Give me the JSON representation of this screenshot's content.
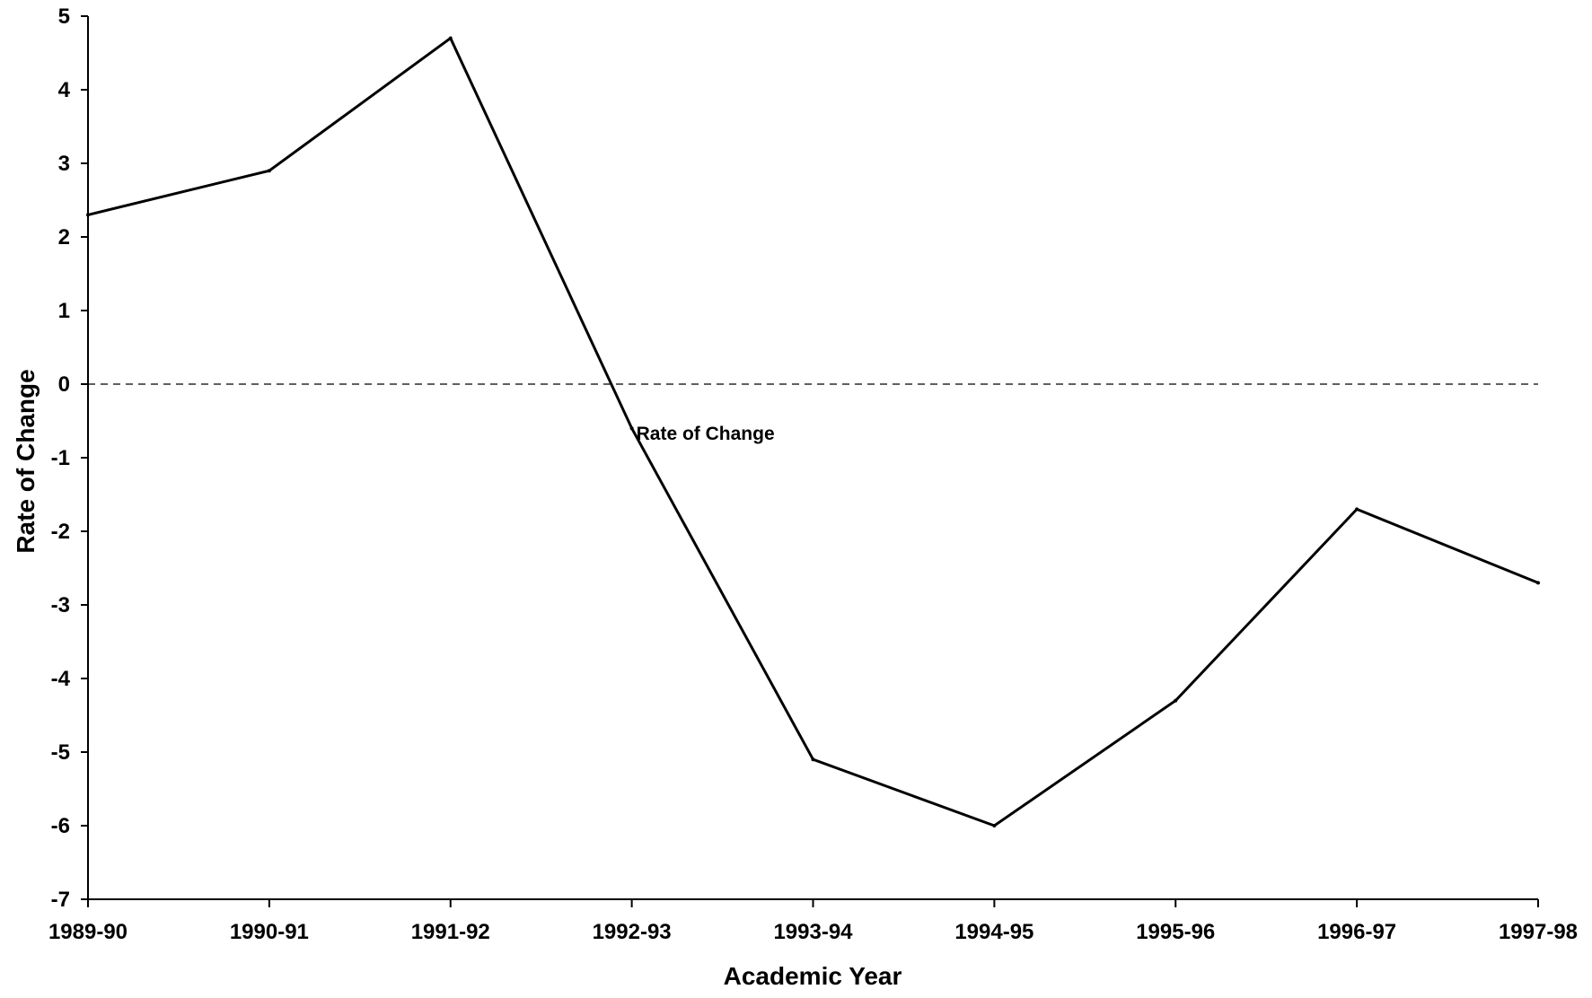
{
  "chart_data": {
    "type": "line",
    "title": "",
    "xlabel": "Academic Year",
    "ylabel": "Rate of Change",
    "categories": [
      "1989-90",
      "1990-91",
      "1991-92",
      "1992-93",
      "1993-94",
      "1994-95",
      "1995-96",
      "1996-97",
      "1997-98"
    ],
    "series": [
      {
        "name": "Rate of Change",
        "color": "#000000",
        "values": [
          2.3,
          2.9,
          4.7,
          -0.6,
          -5.1,
          -6.0,
          -4.3,
          -1.7,
          -2.7
        ]
      }
    ],
    "yticks": [
      5,
      4,
      3,
      2,
      1,
      0,
      -1,
      -2,
      -3,
      -4,
      -5,
      -6,
      -7
    ],
    "ylim": [
      -7,
      5
    ],
    "reference_line": {
      "y": 0,
      "style": "dashed"
    },
    "series_label_position": "beside the 1992-93 point",
    "grid": false,
    "legend": "none"
  }
}
